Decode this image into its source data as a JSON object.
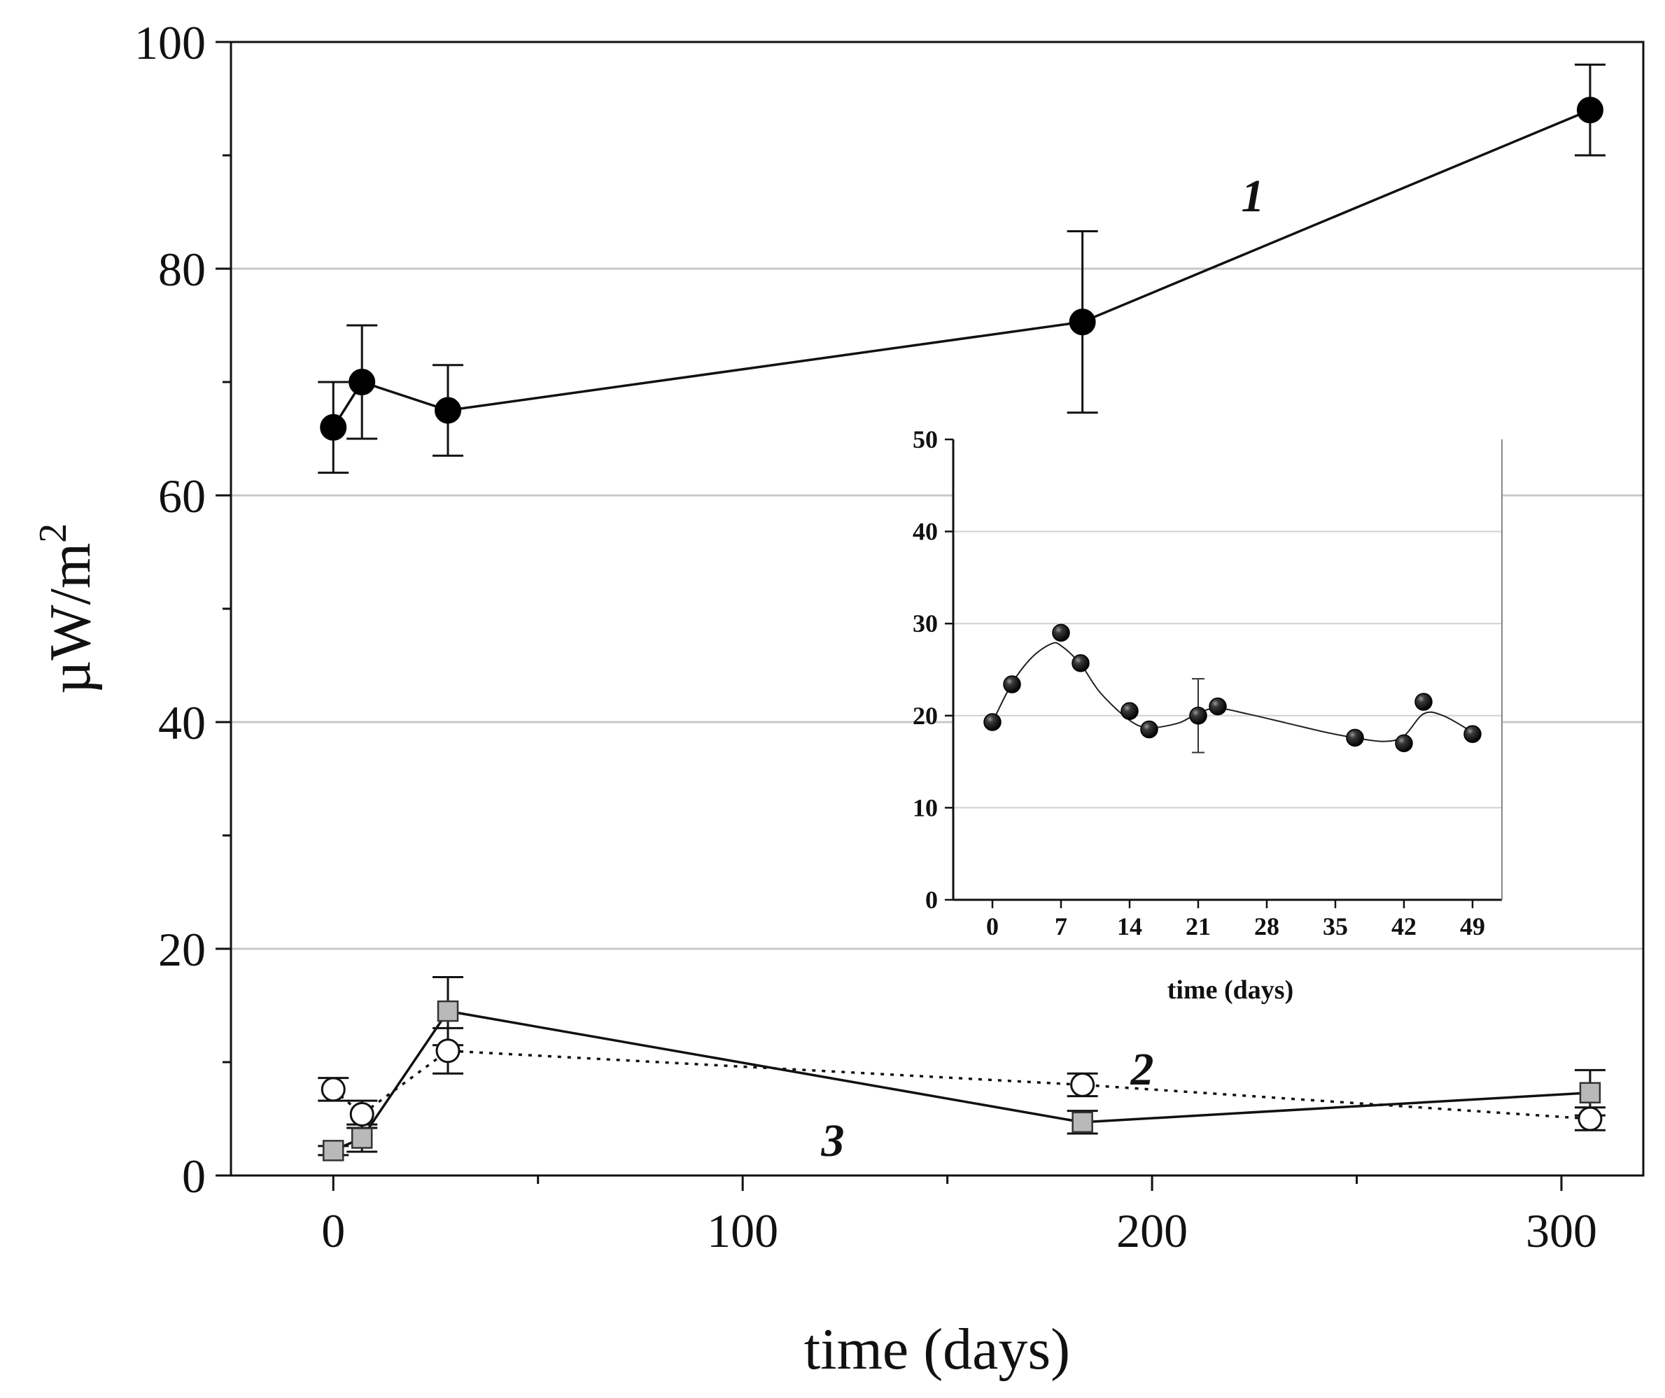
{
  "chart_data": [
    {
      "id": "main",
      "type": "line",
      "title": "",
      "xlabel": "time (days)",
      "ylabel": "µW/m²",
      "ylabel_base": "µW/m",
      "ylabel_sup": "2",
      "xlim": [
        -25,
        320
      ],
      "ylim": [
        0,
        100
      ],
      "xticks": [
        0,
        100,
        200,
        300
      ],
      "xminor": [
        50,
        150,
        250
      ],
      "yticks": [
        0,
        20,
        40,
        60,
        80,
        100
      ],
      "yminor": [
        10,
        30,
        50,
        70,
        90
      ],
      "gridlines_y": [
        20,
        40,
        60,
        80
      ],
      "series": [
        {
          "name": "1",
          "label": "1",
          "marker": "filled-circle",
          "line": "solid",
          "x": [
            0,
            7,
            28,
            183,
            307
          ],
          "y": [
            66,
            70,
            67.5,
            75.3,
            94
          ],
          "err": [
            4,
            5,
            4,
            8,
            4
          ]
        },
        {
          "name": "2",
          "label": "2",
          "marker": "open-circle",
          "line": "dotted",
          "x": [
            0,
            7,
            28,
            183,
            307
          ],
          "y": [
            7.6,
            5.4,
            11,
            8,
            5
          ],
          "err": [
            1,
            1.2,
            2,
            1,
            1
          ]
        },
        {
          "name": "3",
          "label": "3",
          "marker": "grey-square",
          "line": "solid",
          "x": [
            0,
            7,
            28,
            183,
            307
          ],
          "y": [
            2.2,
            3.3,
            14.5,
            4.7,
            7.3
          ],
          "err": [
            0.4,
            1.2,
            3,
            1,
            2
          ]
        }
      ]
    },
    {
      "id": "inset",
      "type": "scatter",
      "title": "",
      "xlabel": "time (days)",
      "ylabel": "",
      "xlim": [
        -4,
        52
      ],
      "ylim": [
        0,
        50
      ],
      "xticks": [
        0,
        7,
        14,
        21,
        28,
        35,
        42,
        49
      ],
      "yticks": [
        0,
        10,
        20,
        30,
        40,
        50
      ],
      "gridlines_y": [
        10,
        20,
        30,
        40
      ],
      "series": [
        {
          "name": "inset-series",
          "marker": "filled-sphere",
          "x": [
            0,
            2,
            7,
            9,
            14,
            16,
            21,
            23,
            37,
            42,
            44,
            49
          ],
          "y": [
            19.3,
            23.4,
            29,
            25.7,
            20.5,
            18.5,
            20,
            21,
            17.6,
            17,
            21.5,
            18
          ],
          "err": [
            0,
            0,
            0,
            0,
            0,
            0,
            4,
            0,
            0,
            0,
            0,
            0
          ],
          "curve_x": [
            0,
            2,
            4,
            6,
            7,
            9,
            11,
            14,
            16,
            19,
            21,
            23,
            26,
            30,
            34,
            37,
            40,
            42,
            44,
            46,
            49
          ],
          "curve_y": [
            19.3,
            23.5,
            26.3,
            27.8,
            27.6,
            25.6,
            22.5,
            19.5,
            18.7,
            19.2,
            20.3,
            20.8,
            20.2,
            19.2,
            18.2,
            17.6,
            17.2,
            17.8,
            20.2,
            20,
            18.2
          ]
        }
      ]
    }
  ]
}
